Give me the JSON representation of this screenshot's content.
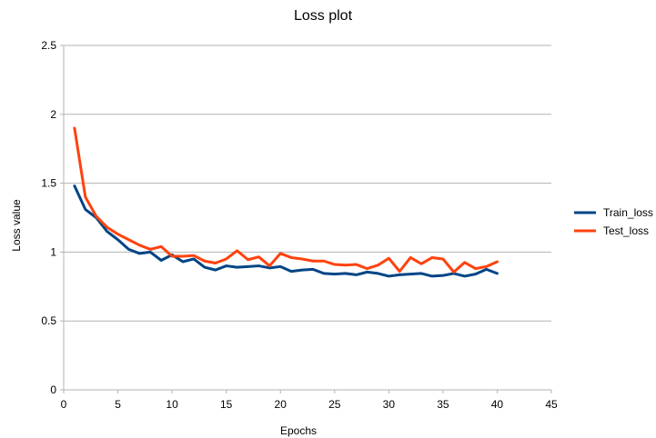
{
  "chart_data": {
    "type": "line",
    "title": "Loss plot",
    "xlabel": "Epochs",
    "ylabel": "Loss value",
    "xlim": [
      0,
      45
    ],
    "ylim": [
      0,
      2.5
    ],
    "xticks": [
      "0",
      "5",
      "10",
      "15",
      "20",
      "25",
      "30",
      "35",
      "40",
      "45"
    ],
    "yticks": [
      "0",
      "0.5",
      "1",
      "1.5",
      "2",
      "2.5"
    ],
    "grid": "horizontal",
    "legend_position": "right",
    "x": [
      1,
      2,
      3,
      4,
      5,
      6,
      7,
      8,
      9,
      10,
      11,
      12,
      13,
      14,
      15,
      16,
      17,
      18,
      19,
      20,
      21,
      22,
      23,
      24,
      25,
      26,
      27,
      28,
      29,
      30,
      31,
      32,
      33,
      34,
      35,
      36,
      37,
      38,
      39,
      40
    ],
    "series": [
      {
        "name": "Train_loss",
        "color": "#004586",
        "values": [
          1.48,
          1.31,
          1.25,
          1.15,
          1.09,
          1.02,
          0.99,
          1.0,
          0.94,
          0.98,
          0.93,
          0.95,
          0.89,
          0.87,
          0.9,
          0.89,
          0.895,
          0.9,
          0.885,
          0.895,
          0.86,
          0.87,
          0.875,
          0.845,
          0.84,
          0.845,
          0.835,
          0.855,
          0.845,
          0.825,
          0.835,
          0.84,
          0.845,
          0.825,
          0.83,
          0.845,
          0.825,
          0.84,
          0.875,
          0.845
        ]
      },
      {
        "name": "Test_loss",
        "color": "#ff420e",
        "values": [
          1.9,
          1.4,
          1.26,
          1.18,
          1.13,
          1.09,
          1.05,
          1.02,
          1.04,
          0.97,
          0.97,
          0.975,
          0.935,
          0.92,
          0.95,
          1.01,
          0.945,
          0.965,
          0.9,
          0.99,
          0.96,
          0.95,
          0.935,
          0.935,
          0.91,
          0.905,
          0.91,
          0.88,
          0.905,
          0.955,
          0.86,
          0.96,
          0.915,
          0.96,
          0.95,
          0.855,
          0.925,
          0.88,
          0.895,
          0.93
        ]
      }
    ]
  }
}
